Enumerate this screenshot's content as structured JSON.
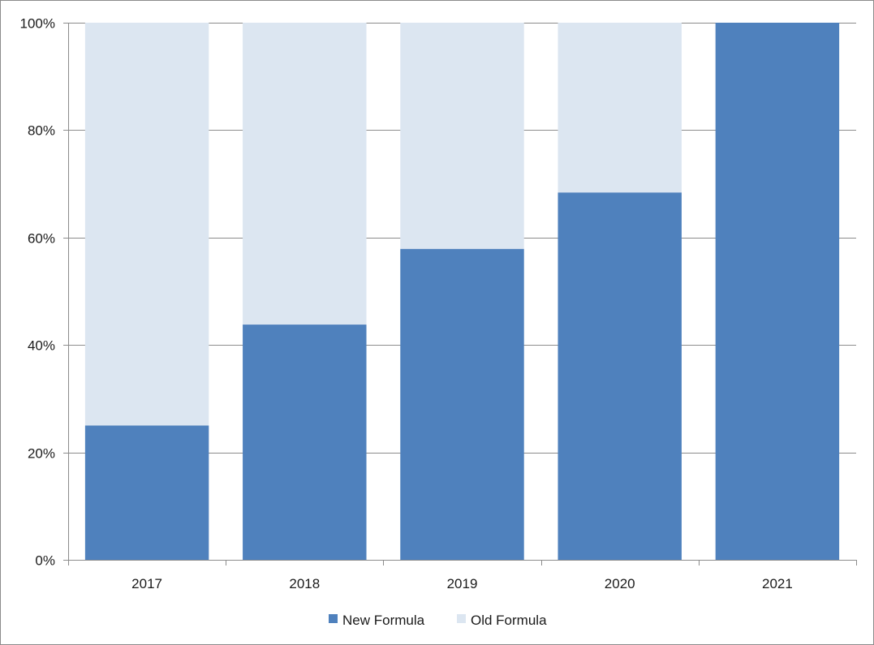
{
  "chart_data": {
    "type": "bar",
    "stacked": true,
    "percent_stacked": true,
    "categories": [
      "2017",
      "2018",
      "2019",
      "2020",
      "2021"
    ],
    "series": [
      {
        "name": "New Formula",
        "values": [
          25,
          43.8,
          57.9,
          68.4,
          100
        ]
      },
      {
        "name": "Old Formula",
        "values": [
          75,
          56.2,
          42.1,
          31.6,
          0
        ]
      }
    ],
    "ylim": [
      0,
      100
    ],
    "y_ticks": [
      "0%",
      "20%",
      "40%",
      "60%",
      "80%",
      "100%"
    ],
    "y_tick_values": [
      0,
      20,
      40,
      60,
      80,
      100
    ],
    "grid": true,
    "legend_position": "bottom",
    "colors": {
      "New Formula": "#4f81bd",
      "Old Formula": "#dce6f1"
    },
    "title": "",
    "xlabel": "",
    "ylabel": ""
  }
}
